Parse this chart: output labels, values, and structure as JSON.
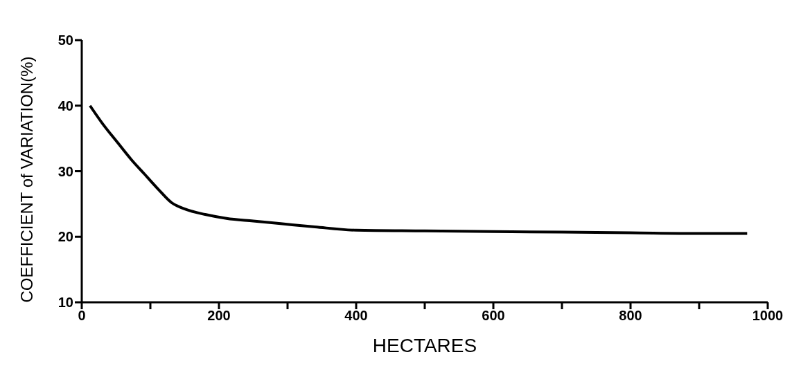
{
  "chart_data": {
    "type": "line",
    "xlabel": "HECTARES",
    "ylabel": "COEFFICIENT of VARIATION(%)",
    "x": [
      12,
      30,
      52,
      72,
      92,
      112,
      131,
      151,
      180,
      211,
      250,
      290,
      340,
      400,
      500,
      600,
      700,
      800,
      900,
      970
    ],
    "series": [
      {
        "color": "#000000",
        "values": [
          40,
          37.3,
          34.4,
          31.8,
          29.5,
          27.2,
          25.2,
          24.2,
          23.4,
          22.8,
          22.4,
          22,
          21.5,
          21,
          20.9,
          20.8,
          20.7,
          20.6,
          20.5,
          20.5
        ]
      }
    ],
    "xlim": [
      0,
      1000
    ],
    "ylim": [
      10,
      50
    ],
    "xticks": [
      0,
      {
        "value": 100,
        "label": null
      },
      200,
      {
        "value": 300,
        "label": null
      },
      400,
      {
        "value": 500,
        "label": null
      },
      600,
      {
        "value": 700,
        "label": null
      },
      800,
      {
        "value": 900,
        "label": null
      },
      1000
    ],
    "yticks": [
      10,
      20,
      30,
      40,
      50
    ],
    "grid": false,
    "legend": false,
    "marker": "none",
    "line_style": "solid"
  }
}
